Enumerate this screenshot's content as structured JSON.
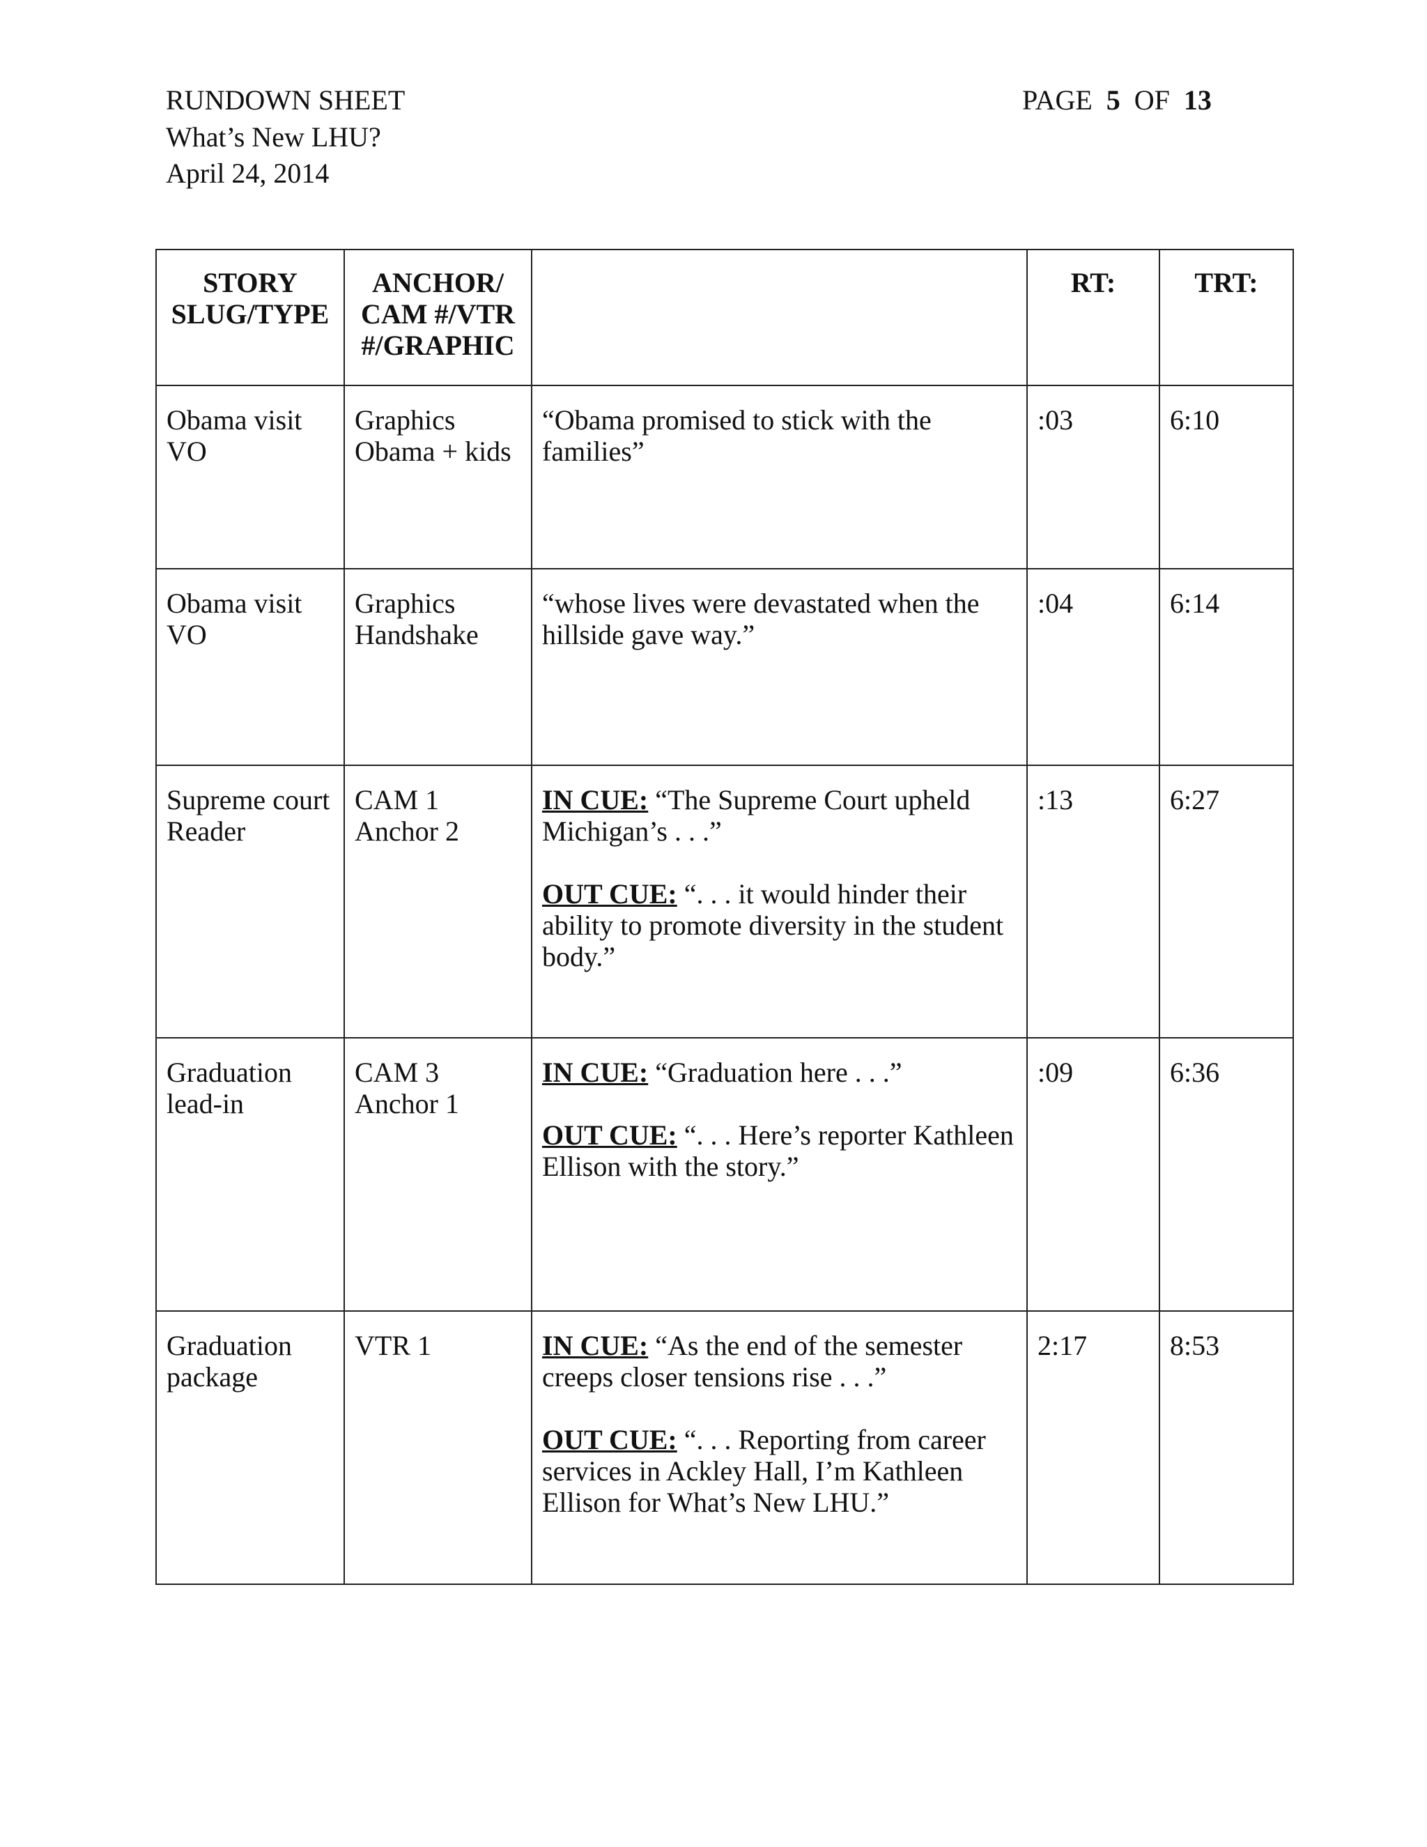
{
  "header": {
    "title": "RUNDOWN SHEET",
    "show": "What’s New LHU?",
    "date": "April 24, 2014",
    "page_label": "PAGE",
    "page_num": "5",
    "of_label": "OF",
    "page_total": "13"
  },
  "table": {
    "columns": [
      "STORY SLUG/TYPE",
      "ANCHOR/ CAM #/VTR #/GRAPHIC",
      "",
      "RT:",
      "TRT:"
    ],
    "rows": [
      {
        "slug": [
          "Obama visit",
          "VO"
        ],
        "anchor": [
          "Graphics",
          "Obama + kids"
        ],
        "text": "“Obama promised to stick with the families”",
        "rt": ":03",
        "trt": "6:10"
      },
      {
        "slug": [
          "Obama visit",
          "VO"
        ],
        "anchor": [
          "Graphics",
          "Handshake"
        ],
        "text": "“whose lives were devastated when the hillside gave way.”",
        "rt": ":04",
        "trt": "6:14"
      },
      {
        "slug": [
          "Supreme court",
          "Reader"
        ],
        "anchor": [
          "CAM 1",
          "Anchor 2"
        ],
        "in_label": "IN CUE:",
        "in_text": "“The Supreme Court upheld Michigan’s . . .”",
        "out_label": "OUT CUE:",
        "out_text": "“. . . it would hinder their ability to promote diversity in the student body.”",
        "rt": ":13",
        "trt": "6:27"
      },
      {
        "slug": [
          "Graduation",
          "lead-in"
        ],
        "anchor": [
          "CAM 3",
          "Anchor 1"
        ],
        "in_label": "IN CUE:",
        "in_text": "“Graduation here . . .”",
        "out_label": "OUT CUE:",
        "out_text": "“. . . Here’s reporter Kathleen Ellison with the story.”",
        "rt": ":09",
        "trt": "6:36"
      },
      {
        "slug": [
          "Graduation",
          "package"
        ],
        "anchor": [
          "VTR 1"
        ],
        "in_label": "IN CUE:",
        "in_text": "“As the end of the semester creeps closer tensions rise . . .”",
        "out_label": "OUT CUE:",
        "out_text": "“. . . Reporting from career services in Ackley Hall, I’m Kathleen Ellison for What’s New LHU.”",
        "rt": "2:17",
        "trt": "8:53"
      }
    ]
  }
}
